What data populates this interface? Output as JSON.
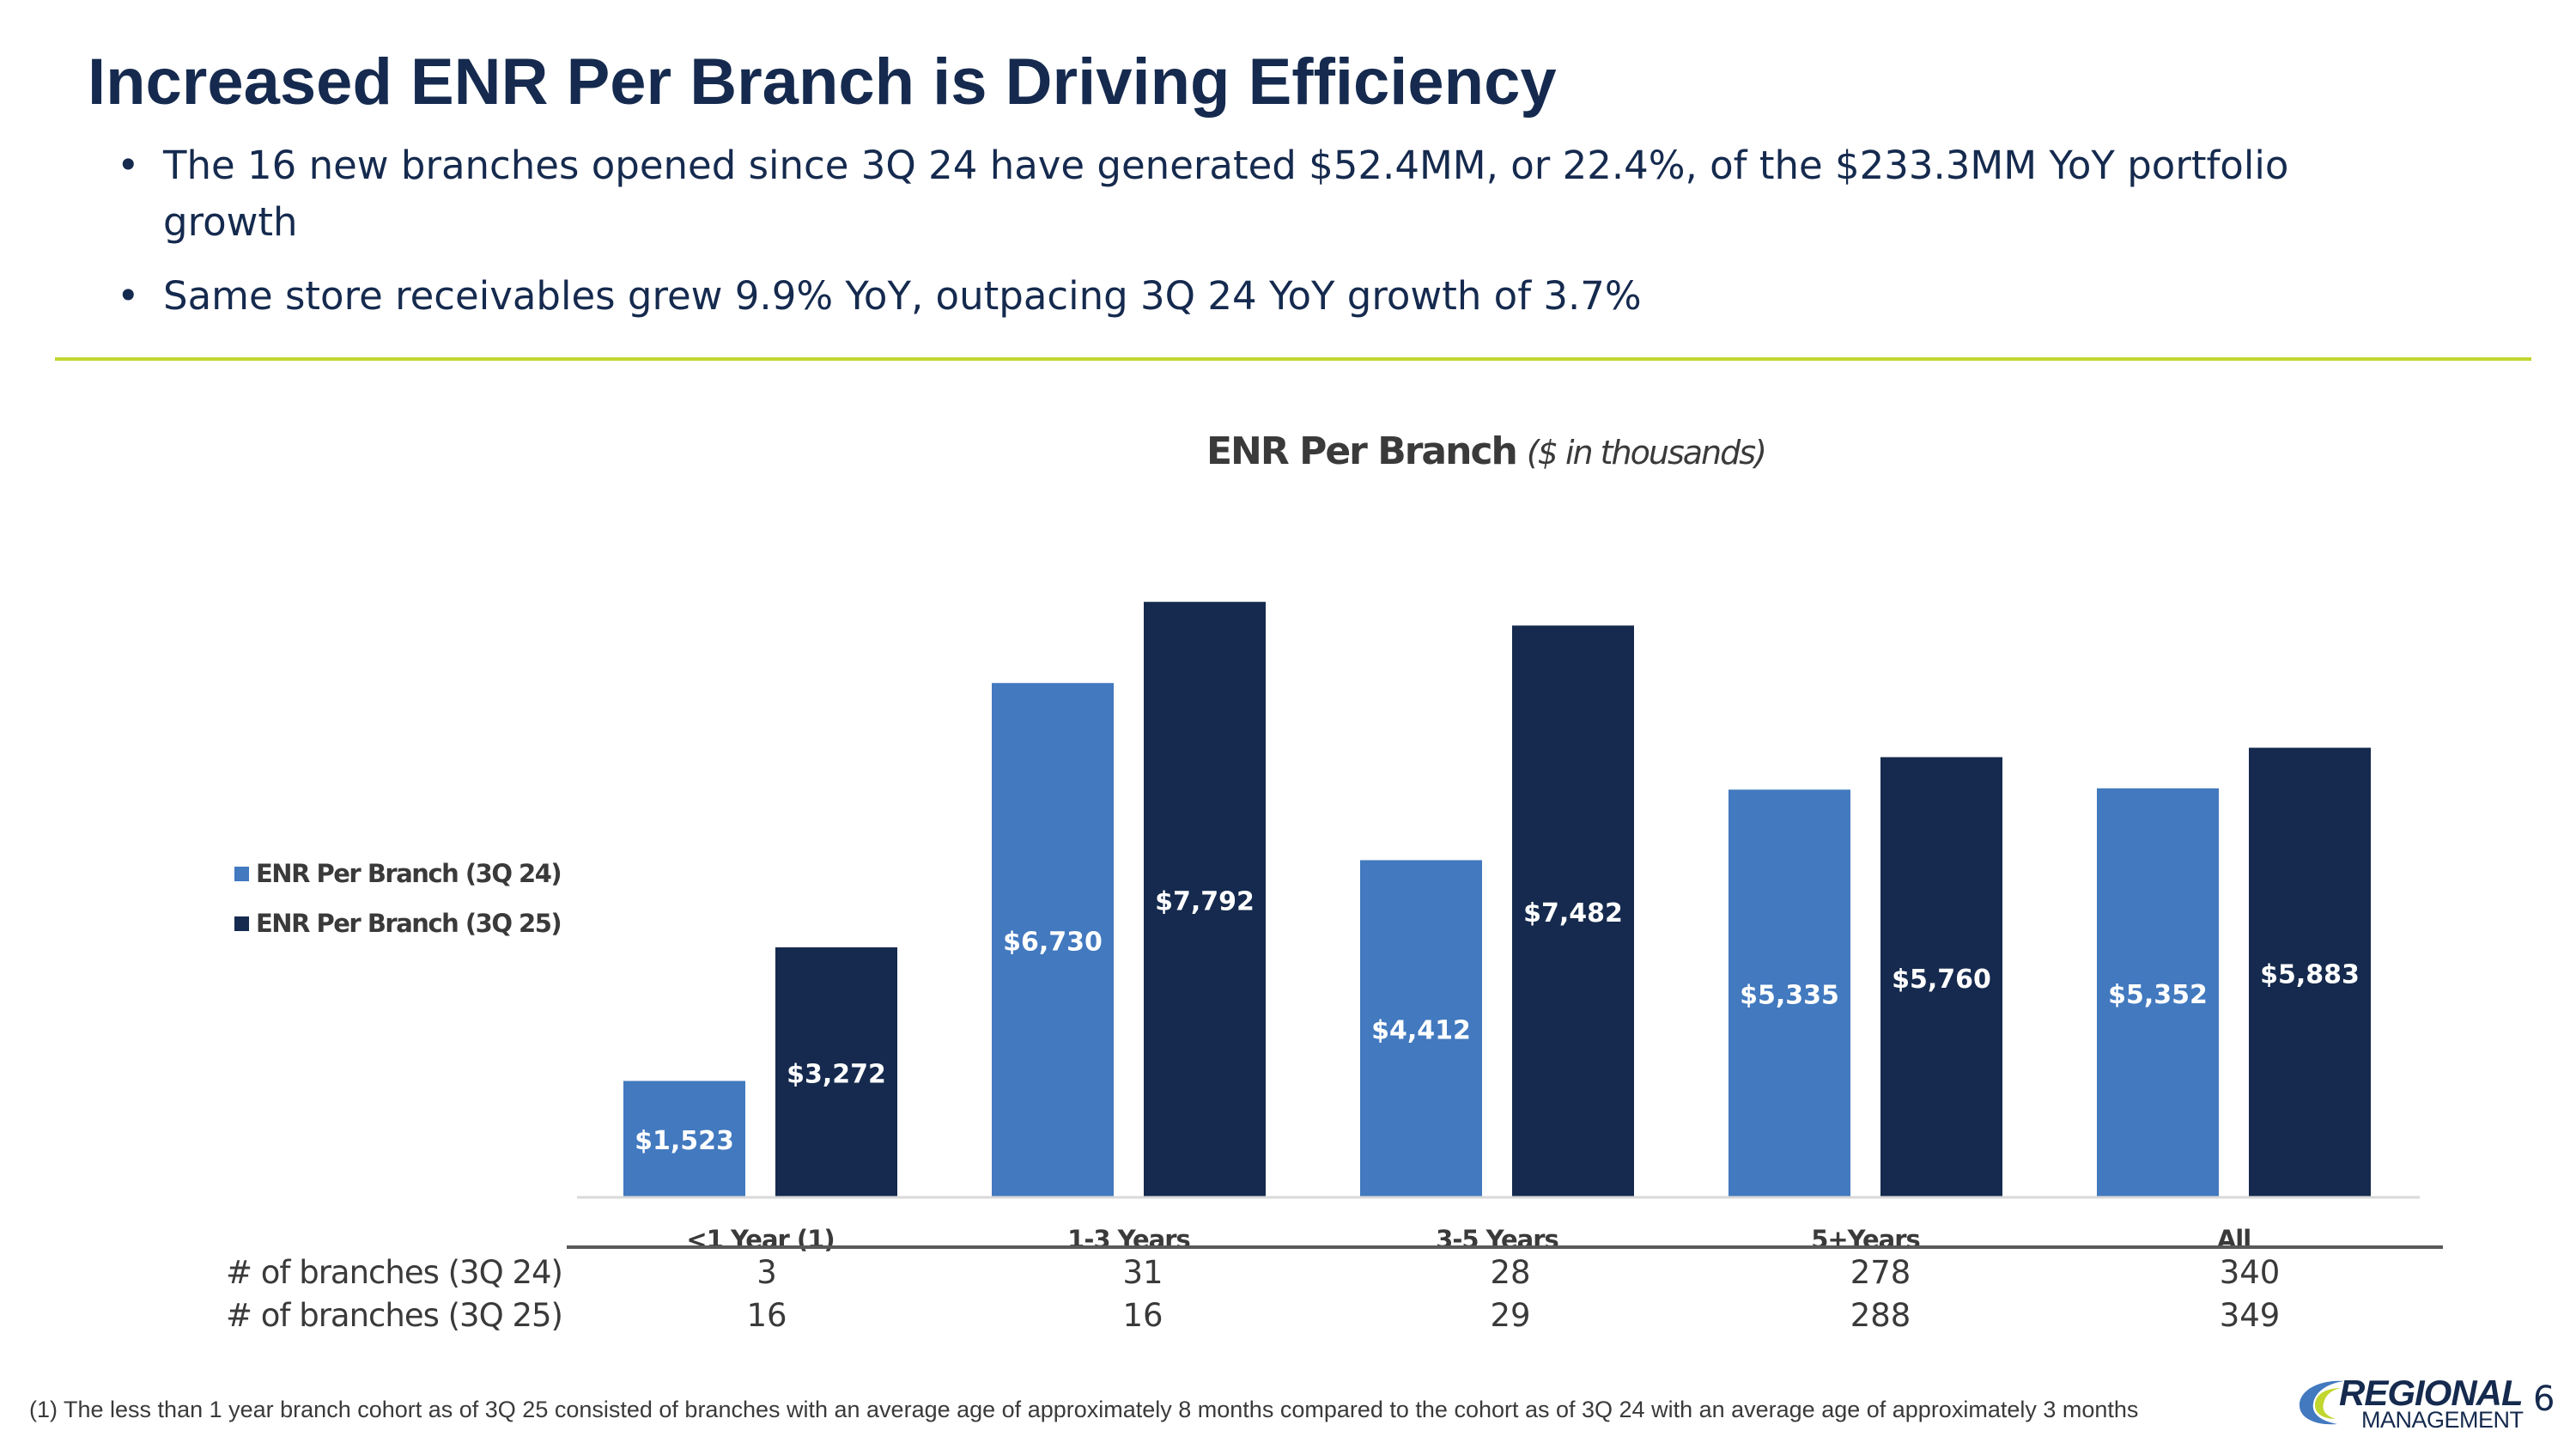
{
  "header": {
    "title": "Increased ENR Per Branch is Driving Efficiency",
    "bullets": [
      "The 16 new branches opened since 3Q 24 have generated $52.4MM, or 22.4%, of the $233.3MM YoY portfolio growth",
      "Same store receivables grew 9.9% YoY, outpacing 3Q 24 YoY growth of 3.7%"
    ]
  },
  "colors": {
    "series_3q24": "#4279bf",
    "series_3q25": "#152a4e",
    "divider": "#c1d62e",
    "text_dark": "#152a4e"
  },
  "chart_data": {
    "type": "bar",
    "title": "ENR Per Branch",
    "subtitle": "($ in thousands)",
    "categories": [
      "<1 Year (1)",
      "1-3 Years",
      "3-5 Years",
      "5+Years",
      "All"
    ],
    "series": [
      {
        "name": "ENR Per Branch (3Q 24)",
        "values": [
          1523,
          6730,
          4412,
          5335,
          5352
        ],
        "labels": [
          "$1,523",
          "$6,730",
          "$4,412",
          "$5,335",
          "$5,352"
        ]
      },
      {
        "name": "ENR Per Branch (3Q 25)",
        "values": [
          3272,
          7792,
          7482,
          5760,
          5883
        ],
        "labels": [
          "$3,272",
          "$7,792",
          "$7,482",
          "$5,760",
          "$5,883"
        ]
      }
    ],
    "ylim": [
      0,
      7800
    ],
    "grid": false,
    "legend": "left"
  },
  "branch_table": {
    "rows": [
      {
        "label": "# of branches (3Q 24)",
        "values": [
          "3",
          "31",
          "28",
          "278",
          "340"
        ]
      },
      {
        "label": "# of branches (3Q 25)",
        "values": [
          "16",
          "16",
          "29",
          "288",
          "349"
        ]
      }
    ]
  },
  "footer": {
    "footnote": "(1) The less than 1 year branch cohort as of 3Q 25 consisted of branches with an average age of approximately 8 months compared to the cohort as of 3Q 24 with an average age of approximately 3 months",
    "logo_top": "REGIONAL",
    "logo_bottom": "MANAGEMENT",
    "page_number": "6"
  }
}
